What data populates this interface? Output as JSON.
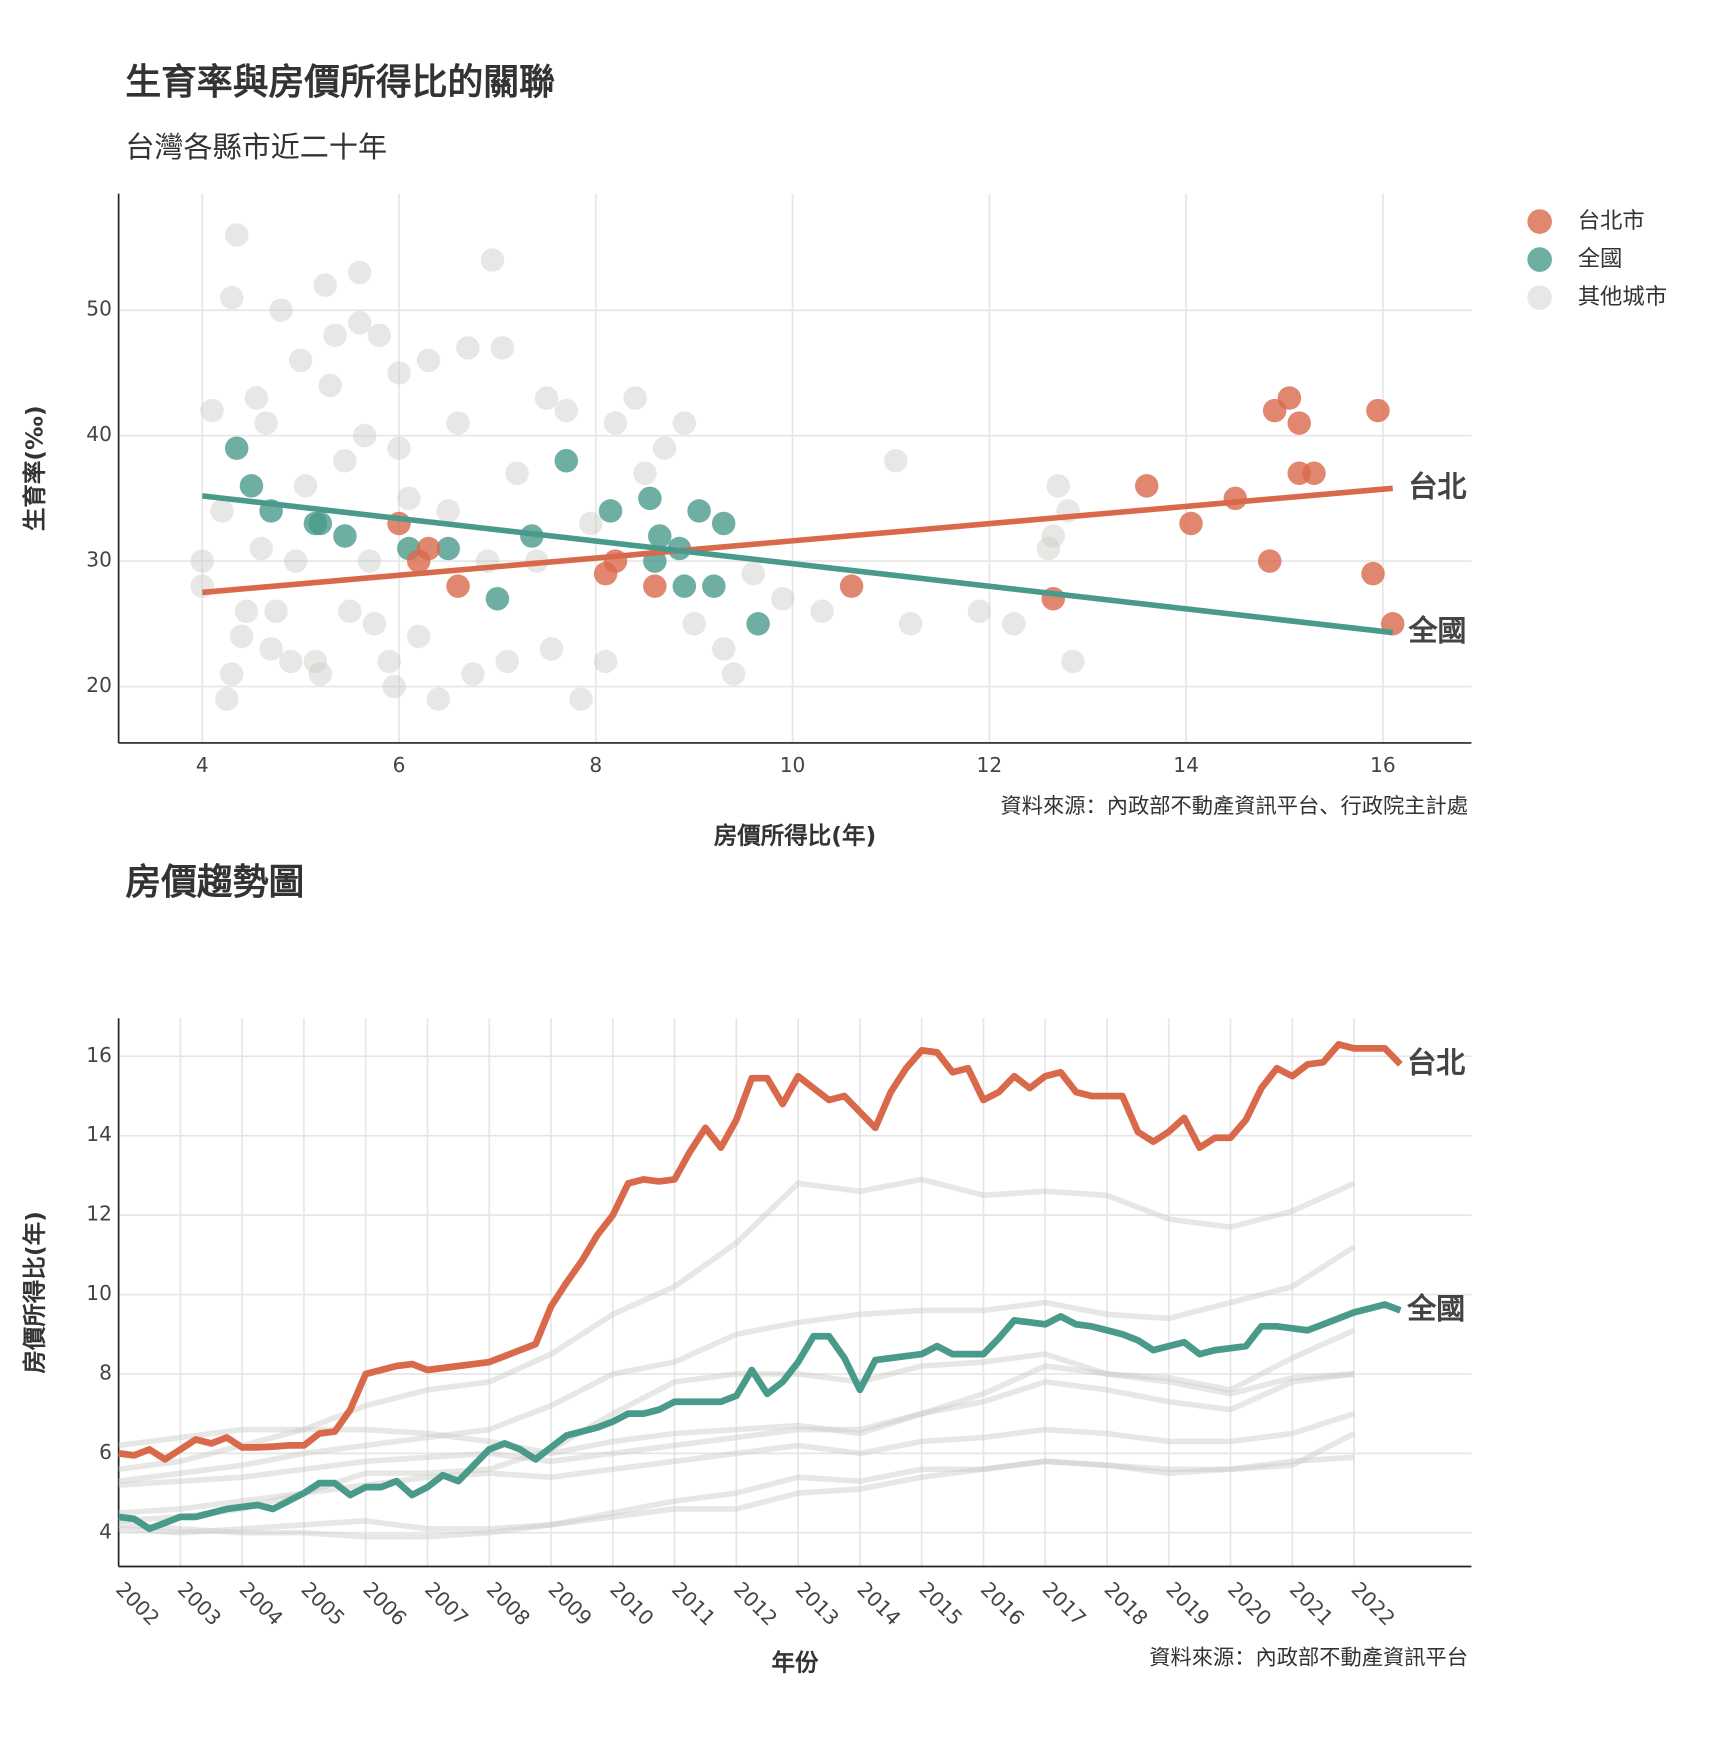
{
  "chart_data": [
    {
      "type": "scatter",
      "title": "生育率與房價所得比的關聯",
      "subtitle": "台灣各縣市近二十年",
      "x_label": "房價所得比(年)",
      "y_label": "生育率(‰)",
      "source": "資料來源：內政部不動產資訊平台、行政院主計處",
      "xlim": [
        3.15,
        16.9
      ],
      "ylim": [
        15.5,
        59.3
      ],
      "xticks": [
        4,
        6,
        8,
        10,
        12,
        14,
        16
      ],
      "yticks": [
        20,
        30,
        40,
        50
      ],
      "grid": true,
      "legend": "top-right",
      "series": [
        {
          "name": "其他城市",
          "color": "#c9c9c6",
          "x": [
            4,
            4,
            4.1,
            4.2,
            4.25,
            4.3,
            4.35,
            4.3,
            4.4,
            4.45,
            4.55,
            4.6,
            4.65,
            4.7,
            4.75,
            4.8,
            4.9,
            4.95,
            5.0,
            5.05,
            5.15,
            5.2,
            5.25,
            5.3,
            5.35,
            5.45,
            5.5,
            5.6,
            5.6,
            5.65,
            5.7,
            5.75,
            5.8,
            5.9,
            5.95,
            6.0,
            6.0,
            6.1,
            6.2,
            6.3,
            6.4,
            6.5,
            6.6,
            6.7,
            6.75,
            6.9,
            6.95,
            7.05,
            7.1,
            7.2,
            7.4,
            7.5,
            7.55,
            7.7,
            7.85,
            7.95,
            8.1,
            8.2,
            8.4,
            8.5,
            8.7,
            8.9,
            9.0,
            9.3,
            9.4,
            9.6,
            9.9,
            10.3,
            11.05,
            11.2,
            11.9,
            12.25,
            12.6,
            12.65,
            12.7,
            12.85,
            12.8
          ],
          "values": [
            28,
            30,
            42,
            34,
            19,
            21,
            56,
            51,
            24,
            26,
            43,
            31,
            41,
            23,
            26,
            50,
            22,
            30,
            46,
            36,
            22,
            21,
            52,
            44,
            48,
            38,
            26,
            53,
            49,
            40,
            30,
            25,
            48,
            22,
            20,
            45,
            39,
            35,
            24,
            46,
            19,
            34,
            41,
            47,
            21,
            30,
            54,
            47,
            22,
            37,
            30,
            43,
            23,
            42,
            19,
            33,
            22,
            41,
            43,
            37,
            39,
            41,
            25,
            23,
            21,
            29,
            27,
            26,
            38,
            25,
            26,
            25,
            31,
            32,
            36,
            22,
            34
          ]
        },
        {
          "name": "全國",
          "color": "#4a9a8c",
          "x": [
            4.35,
            4.5,
            4.7,
            5.15,
            5.2,
            5.45,
            6.1,
            6.5,
            7.0,
            7.35,
            7.7,
            8.15,
            8.55,
            8.6,
            8.65,
            8.85,
            8.9,
            9.05,
            9.2,
            9.3,
            9.65
          ],
          "values": [
            39,
            36,
            34,
            33,
            33,
            32,
            31,
            31,
            27,
            32,
            38,
            34,
            35,
            30,
            32,
            31,
            28,
            34,
            28,
            33,
            25
          ]
        },
        {
          "name": "台北市",
          "color": "#d9694b",
          "x": [
            6.0,
            6.2,
            6.3,
            6.6,
            8.1,
            8.2,
            8.6,
            10.6,
            12.65,
            13.6,
            14.05,
            14.5,
            14.85,
            14.9,
            15.05,
            15.15,
            15.15,
            15.3,
            15.9,
            15.95,
            16.1
          ],
          "values": [
            33,
            30,
            31,
            28,
            29,
            30,
            28,
            28,
            27,
            36,
            33,
            35,
            30,
            42,
            43,
            41,
            37,
            37,
            29,
            42,
            25
          ]
        }
      ],
      "trend_lines": [
        {
          "label": "台北",
          "color": "#d9694b",
          "x": [
            4,
            16.1
          ],
          "values": [
            27.5,
            35.8
          ]
        },
        {
          "label": "全國",
          "color": "#4a9a8c",
          "x": [
            4,
            16.1
          ],
          "values": [
            35.2,
            24.3
          ]
        }
      ]
    },
    {
      "type": "line",
      "title": "房價趨勢圖",
      "x_label": "年份",
      "y_label": "房價所得比(年)",
      "source": "資料來源：內政部不動產資訊平台",
      "xlim": [
        2002,
        2023.9
      ],
      "ylim": [
        3.15,
        16.96
      ],
      "xticks": [
        2002,
        2003,
        2004,
        2005,
        2006,
        2007,
        2008,
        2009,
        2010,
        2011,
        2012,
        2013,
        2014,
        2015,
        2016,
        2017,
        2018,
        2019,
        2020,
        2021,
        2022
      ],
      "yticks": [
        4,
        6,
        8,
        10,
        12,
        14,
        16
      ],
      "grid": true,
      "series": [
        {
          "color": "#c9c9c6",
          "x": [
            2002,
            2003,
            2004,
            2005,
            2006,
            2007,
            2008,
            2009,
            2010,
            2011,
            2012,
            2013,
            2014,
            2015,
            2016,
            2017,
            2018,
            2019,
            2020,
            2021,
            2022
          ],
          "values": [
            5.6,
            5.8,
            6.2,
            6.6,
            7.2,
            7.6,
            7.8,
            8.5,
            9.5,
            10.2,
            11.3,
            12.8,
            12.6,
            12.9,
            12.5,
            12.6,
            12.5,
            11.9,
            11.7,
            12.1,
            12.8
          ]
        },
        {
          "color": "#c9c9c6",
          "x": [
            2002,
            2003,
            2004,
            2005,
            2006,
            2007,
            2008,
            2009,
            2010,
            2011,
            2012,
            2013,
            2014,
            2015,
            2016,
            2017,
            2018,
            2019,
            2020,
            2021,
            2022
          ],
          "values": [
            5.3,
            5.5,
            5.7,
            6.0,
            6.2,
            6.4,
            6.6,
            7.2,
            8.0,
            8.3,
            9.0,
            9.3,
            9.5,
            9.6,
            9.6,
            9.8,
            9.5,
            9.4,
            9.8,
            10.2,
            11.2
          ]
        },
        {
          "color": "#c9c9c6",
          "x": [
            2002,
            2003,
            2004,
            2005,
            2006,
            2007,
            2008,
            2009,
            2010,
            2011,
            2012,
            2013,
            2014,
            2015,
            2016,
            2017,
            2018,
            2019,
            2020,
            2021,
            2022
          ],
          "values": [
            4.3,
            4.4,
            4.6,
            5.0,
            5.5,
            5.5,
            5.6,
            6.1,
            7.0,
            7.8,
            8.0,
            8.0,
            7.8,
            8.2,
            8.3,
            8.5,
            8.0,
            7.8,
            7.5,
            7.9,
            8.0
          ]
        },
        {
          "color": "#c9c9c6",
          "x": [
            2002,
            2003,
            2004,
            2005,
            2006,
            2007,
            2008,
            2009,
            2010,
            2011,
            2012,
            2013,
            2014,
            2015,
            2016,
            2017,
            2018,
            2019,
            2020,
            2021,
            2022
          ],
          "values": [
            5.2,
            5.3,
            5.4,
            5.6,
            5.8,
            5.9,
            6.0,
            5.8,
            6.0,
            6.2,
            6.4,
            6.6,
            6.6,
            7.0,
            7.5,
            8.2,
            8.0,
            7.9,
            7.6,
            8.4,
            9.1
          ]
        },
        {
          "color": "#c9c9c6",
          "x": [
            2002,
            2003,
            2004,
            2005,
            2006,
            2007,
            2008,
            2009,
            2010,
            2011,
            2012,
            2013,
            2014,
            2015,
            2016,
            2017,
            2018,
            2019,
            2020,
            2021,
            2022
          ],
          "values": [
            4.5,
            4.6,
            4.8,
            5.0,
            5.2,
            5.4,
            5.5,
            5.4,
            5.6,
            5.8,
            6.0,
            6.2,
            6.0,
            6.3,
            6.4,
            6.6,
            6.5,
            6.3,
            6.3,
            6.5,
            7.0
          ]
        },
        {
          "color": "#c9c9c6",
          "x": [
            2002,
            2003,
            2004,
            2005,
            2006,
            2007,
            2008,
            2009,
            2010,
            2011,
            2012,
            2013,
            2014,
            2015,
            2016,
            2017,
            2018,
            2019,
            2020,
            2021,
            2022
          ],
          "values": [
            4.1,
            4.0,
            4.1,
            4.2,
            4.3,
            4.1,
            4.1,
            4.2,
            4.4,
            4.6,
            4.6,
            5.0,
            5.1,
            5.4,
            5.6,
            5.8,
            5.7,
            5.6,
            5.6,
            5.8,
            5.9
          ]
        },
        {
          "color": "#c9c9c6",
          "x": [
            2002,
            2003,
            2004,
            2005,
            2006,
            2007,
            2008,
            2009,
            2010,
            2011,
            2012,
            2013,
            2014,
            2015,
            2016,
            2017,
            2018,
            2019,
            2020,
            2021,
            2022
          ],
          "values": [
            6.2,
            6.4,
            6.6,
            6.6,
            6.6,
            6.5,
            6.3,
            6.0,
            6.3,
            6.5,
            6.6,
            6.7,
            6.5,
            7.0,
            7.3,
            7.8,
            7.6,
            7.3,
            7.1,
            7.8,
            8.0
          ]
        },
        {
          "color": "#c9c9c6",
          "x": [
            2002,
            2003,
            2004,
            2005,
            2006,
            2007,
            2008,
            2009,
            2010,
            2011,
            2012,
            2013,
            2014,
            2015,
            2016,
            2017,
            2018,
            2019,
            2020,
            2021,
            2022
          ],
          "values": [
            4.2,
            4.1,
            4.0,
            4.0,
            3.9,
            3.9,
            4.0,
            4.2,
            4.5,
            4.8,
            5.0,
            5.4,
            5.3,
            5.6,
            5.6,
            5.8,
            5.7,
            5.5,
            5.6,
            5.7,
            6.5
          ]
        },
        {
          "name": "全國",
          "color": "#4a9a8c",
          "x": [
            2002,
            2002.25,
            2002.5,
            2002.75,
            2003,
            2003.25,
            2003.5,
            2003.75,
            2004,
            2004.25,
            2004.5,
            2004.75,
            2005,
            2005.25,
            2005.5,
            2005.75,
            2006,
            2006.25,
            2006.5,
            2006.75,
            2007,
            2007.25,
            2007.5,
            2007.75,
            2008,
            2008.25,
            2008.5,
            2008.75,
            2009,
            2009.25,
            2009.5,
            2009.75,
            2010,
            2010.25,
            2010.5,
            2010.75,
            2011,
            2011.25,
            2011.5,
            2011.75,
            2012,
            2012.25,
            2012.5,
            2012.75,
            2013,
            2013.25,
            2013.5,
            2013.75,
            2014,
            2014.25,
            2014.5,
            2014.75,
            2015,
            2015.25,
            2015.5,
            2015.75,
            2016,
            2016.25,
            2016.5,
            2016.75,
            2017,
            2017.25,
            2017.5,
            2017.75,
            2018,
            2018.25,
            2018.5,
            2018.75,
            2019,
            2019.25,
            2019.5,
            2019.75,
            2020,
            2020.25,
            2020.5,
            2020.75,
            2021,
            2021.25,
            2021.5,
            2021.75,
            2022,
            2022.25,
            2022.5,
            2022.75
          ],
          "values": [
            4.4,
            4.35,
            4.1,
            4.25,
            4.4,
            4.4,
            4.5,
            4.6,
            4.65,
            4.7,
            4.6,
            4.8,
            5.0,
            5.25,
            5.25,
            4.95,
            5.15,
            5.15,
            5.3,
            4.95,
            5.15,
            5.45,
            5.3,
            5.7,
            6.1,
            6.25,
            6.1,
            5.85,
            6.15,
            6.45,
            6.55,
            6.65,
            6.8,
            7.0,
            7.0,
            7.1,
            7.3,
            7.3,
            7.3,
            7.3,
            7.45,
            8.1,
            7.5,
            7.8,
            8.3,
            8.95,
            8.95,
            8.4,
            7.6,
            8.35,
            8.4,
            8.45,
            8.5,
            8.7,
            8.5,
            8.5,
            8.5,
            8.9,
            9.35,
            9.3,
            9.25,
            9.45,
            9.25,
            9.2,
            9.1,
            9.0,
            8.85,
            8.6,
            8.7,
            8.8,
            8.5,
            8.6,
            8.65,
            8.7,
            9.2,
            9.2,
            9.15,
            9.1,
            9.25,
            9.4,
            9.55,
            9.65,
            9.75,
            9.6
          ]
        },
        {
          "name": "台北",
          "color": "#d9694b",
          "x": [
            2002,
            2002.25,
            2002.5,
            2002.75,
            2003,
            2003.25,
            2003.5,
            2003.75,
            2004,
            2004.25,
            2004.5,
            2004.75,
            2005,
            2005.25,
            2005.5,
            2005.75,
            2006,
            2006.25,
            2006.5,
            2006.75,
            2007,
            2007.25,
            2007.5,
            2007.75,
            2008,
            2008.25,
            2008.5,
            2008.75,
            2009,
            2009.25,
            2009.5,
            2009.75,
            2010,
            2010.25,
            2010.5,
            2010.75,
            2011,
            2011.25,
            2011.5,
            2011.75,
            2012,
            2012.25,
            2012.5,
            2012.75,
            2013,
            2013.25,
            2013.5,
            2013.75,
            2014,
            2014.25,
            2014.5,
            2014.75,
            2015,
            2015.25,
            2015.5,
            2015.75,
            2016,
            2016.25,
            2016.5,
            2016.75,
            2017,
            2017.25,
            2017.5,
            2017.75,
            2018,
            2018.25,
            2018.5,
            2018.75,
            2019,
            2019.25,
            2019.5,
            2019.75,
            2020,
            2020.25,
            2020.5,
            2020.75,
            2021,
            2021.25,
            2021.5,
            2021.75,
            2022,
            2022.25,
            2022.5,
            2022.75
          ],
          "values": [
            6.0,
            5.95,
            6.1,
            5.85,
            6.1,
            6.35,
            6.25,
            6.4,
            6.15,
            6.15,
            6.17,
            6.2,
            6.2,
            6.5,
            6.55,
            7.1,
            8.0,
            8.1,
            8.2,
            8.25,
            8.1,
            8.15,
            8.2,
            8.25,
            8.3,
            8.45,
            8.6,
            8.75,
            9.7,
            10.3,
            10.85,
            11.5,
            12.0,
            12.8,
            12.9,
            12.85,
            12.9,
            13.6,
            14.2,
            13.7,
            14.4,
            15.45,
            15.45,
            14.8,
            15.5,
            15.2,
            14.9,
            15.0,
            14.6,
            14.2,
            15.1,
            15.7,
            16.15,
            16.1,
            15.6,
            15.7,
            14.9,
            15.1,
            15.5,
            15.2,
            15.5,
            15.6,
            15.1,
            15.0,
            15.0,
            15.0,
            14.1,
            13.85,
            14.1,
            14.45,
            13.7,
            13.95,
            13.95,
            14.4,
            15.2,
            15.7,
            15.5,
            15.8,
            15.85,
            16.3,
            16.2,
            16.2,
            16.2,
            15.8
          ]
        }
      ]
    }
  ]
}
